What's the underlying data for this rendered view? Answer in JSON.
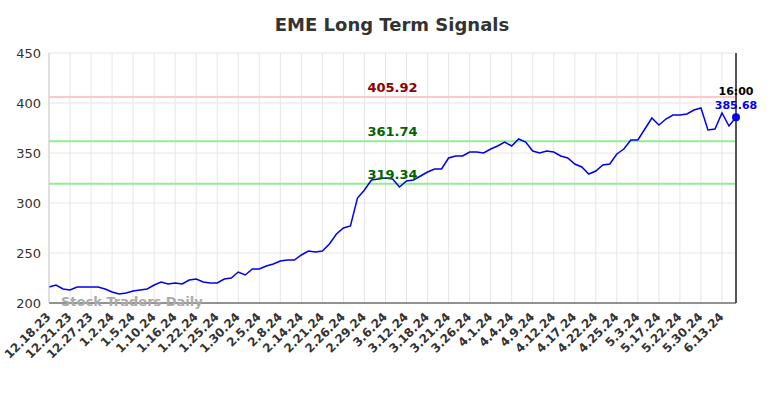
{
  "chart_data": {
    "type": "line",
    "title": "EME Long Term Signals",
    "color": "#0000ee",
    "grid": true,
    "ylim": [
      200,
      450
    ],
    "yticks": [
      200,
      250,
      300,
      350,
      400,
      450
    ],
    "categories": [
      "12.18.23",
      null,
      null,
      "12.21.23",
      null,
      null,
      "12.27.23",
      null,
      null,
      "1.2.24",
      null,
      null,
      "1.5.24",
      null,
      null,
      "1.10.24",
      null,
      null,
      "1.16.24",
      null,
      null,
      "1.22.24",
      null,
      null,
      "1.25.24",
      null,
      null,
      "1.30.24",
      null,
      null,
      "2.5.24",
      null,
      null,
      "2.8.24",
      null,
      null,
      "2.14.24",
      null,
      null,
      "2.21.24",
      null,
      null,
      "2.26.24",
      null,
      null,
      "2.29.24",
      null,
      null,
      "3.6.24",
      null,
      null,
      "3.12.24",
      null,
      null,
      "3.18.24",
      null,
      null,
      "3.21.24",
      null,
      null,
      "3.26.24",
      null,
      null,
      "4.1.24",
      null,
      null,
      "4.4.24",
      null,
      null,
      "4.9.24",
      null,
      null,
      "4.12.24",
      null,
      null,
      "4.17.24",
      null,
      null,
      "4.22.24",
      null,
      null,
      "4.25.24",
      null,
      null,
      "5.3.24",
      null,
      null,
      "5.17.24",
      null,
      null,
      "5.22.24",
      null,
      null,
      "5.30.24",
      null,
      null,
      "6.13.24",
      null,
      null
    ],
    "values": [
      216,
      218,
      214,
      213,
      216,
      216,
      216,
      216,
      214,
      211,
      209,
      210,
      212,
      213,
      214,
      218,
      221,
      219,
      220,
      219,
      223,
      224,
      221,
      220,
      220,
      224,
      225,
      231,
      228,
      234,
      234,
      237,
      239,
      242,
      243,
      243,
      248,
      252,
      251,
      252,
      259,
      269,
      275,
      277,
      305,
      313,
      323,
      324,
      325,
      324,
      316,
      322,
      323,
      327,
      331,
      334,
      334,
      345,
      347,
      347,
      351,
      351,
      350,
      354,
      357,
      361,
      357,
      364,
      361,
      352,
      350,
      352,
      351,
      347,
      345,
      339,
      336,
      329,
      332,
      338,
      339,
      349,
      354,
      363,
      363,
      374,
      385,
      378,
      384,
      388,
      388,
      389,
      393,
      395,
      373,
      374,
      390,
      377,
      385.68
    ],
    "reference_lines": [
      {
        "value": 405.92,
        "color": "#ffc8c8",
        "label_color": "#8b0000"
      },
      {
        "value": 361.74,
        "color": "#90ee90",
        "label_color": "#006400"
      },
      {
        "value": 319.34,
        "color": "#90ee90",
        "label_color": "#006400"
      }
    ],
    "annotation": "16:00",
    "watermark": "Stock Traders Daily"
  }
}
